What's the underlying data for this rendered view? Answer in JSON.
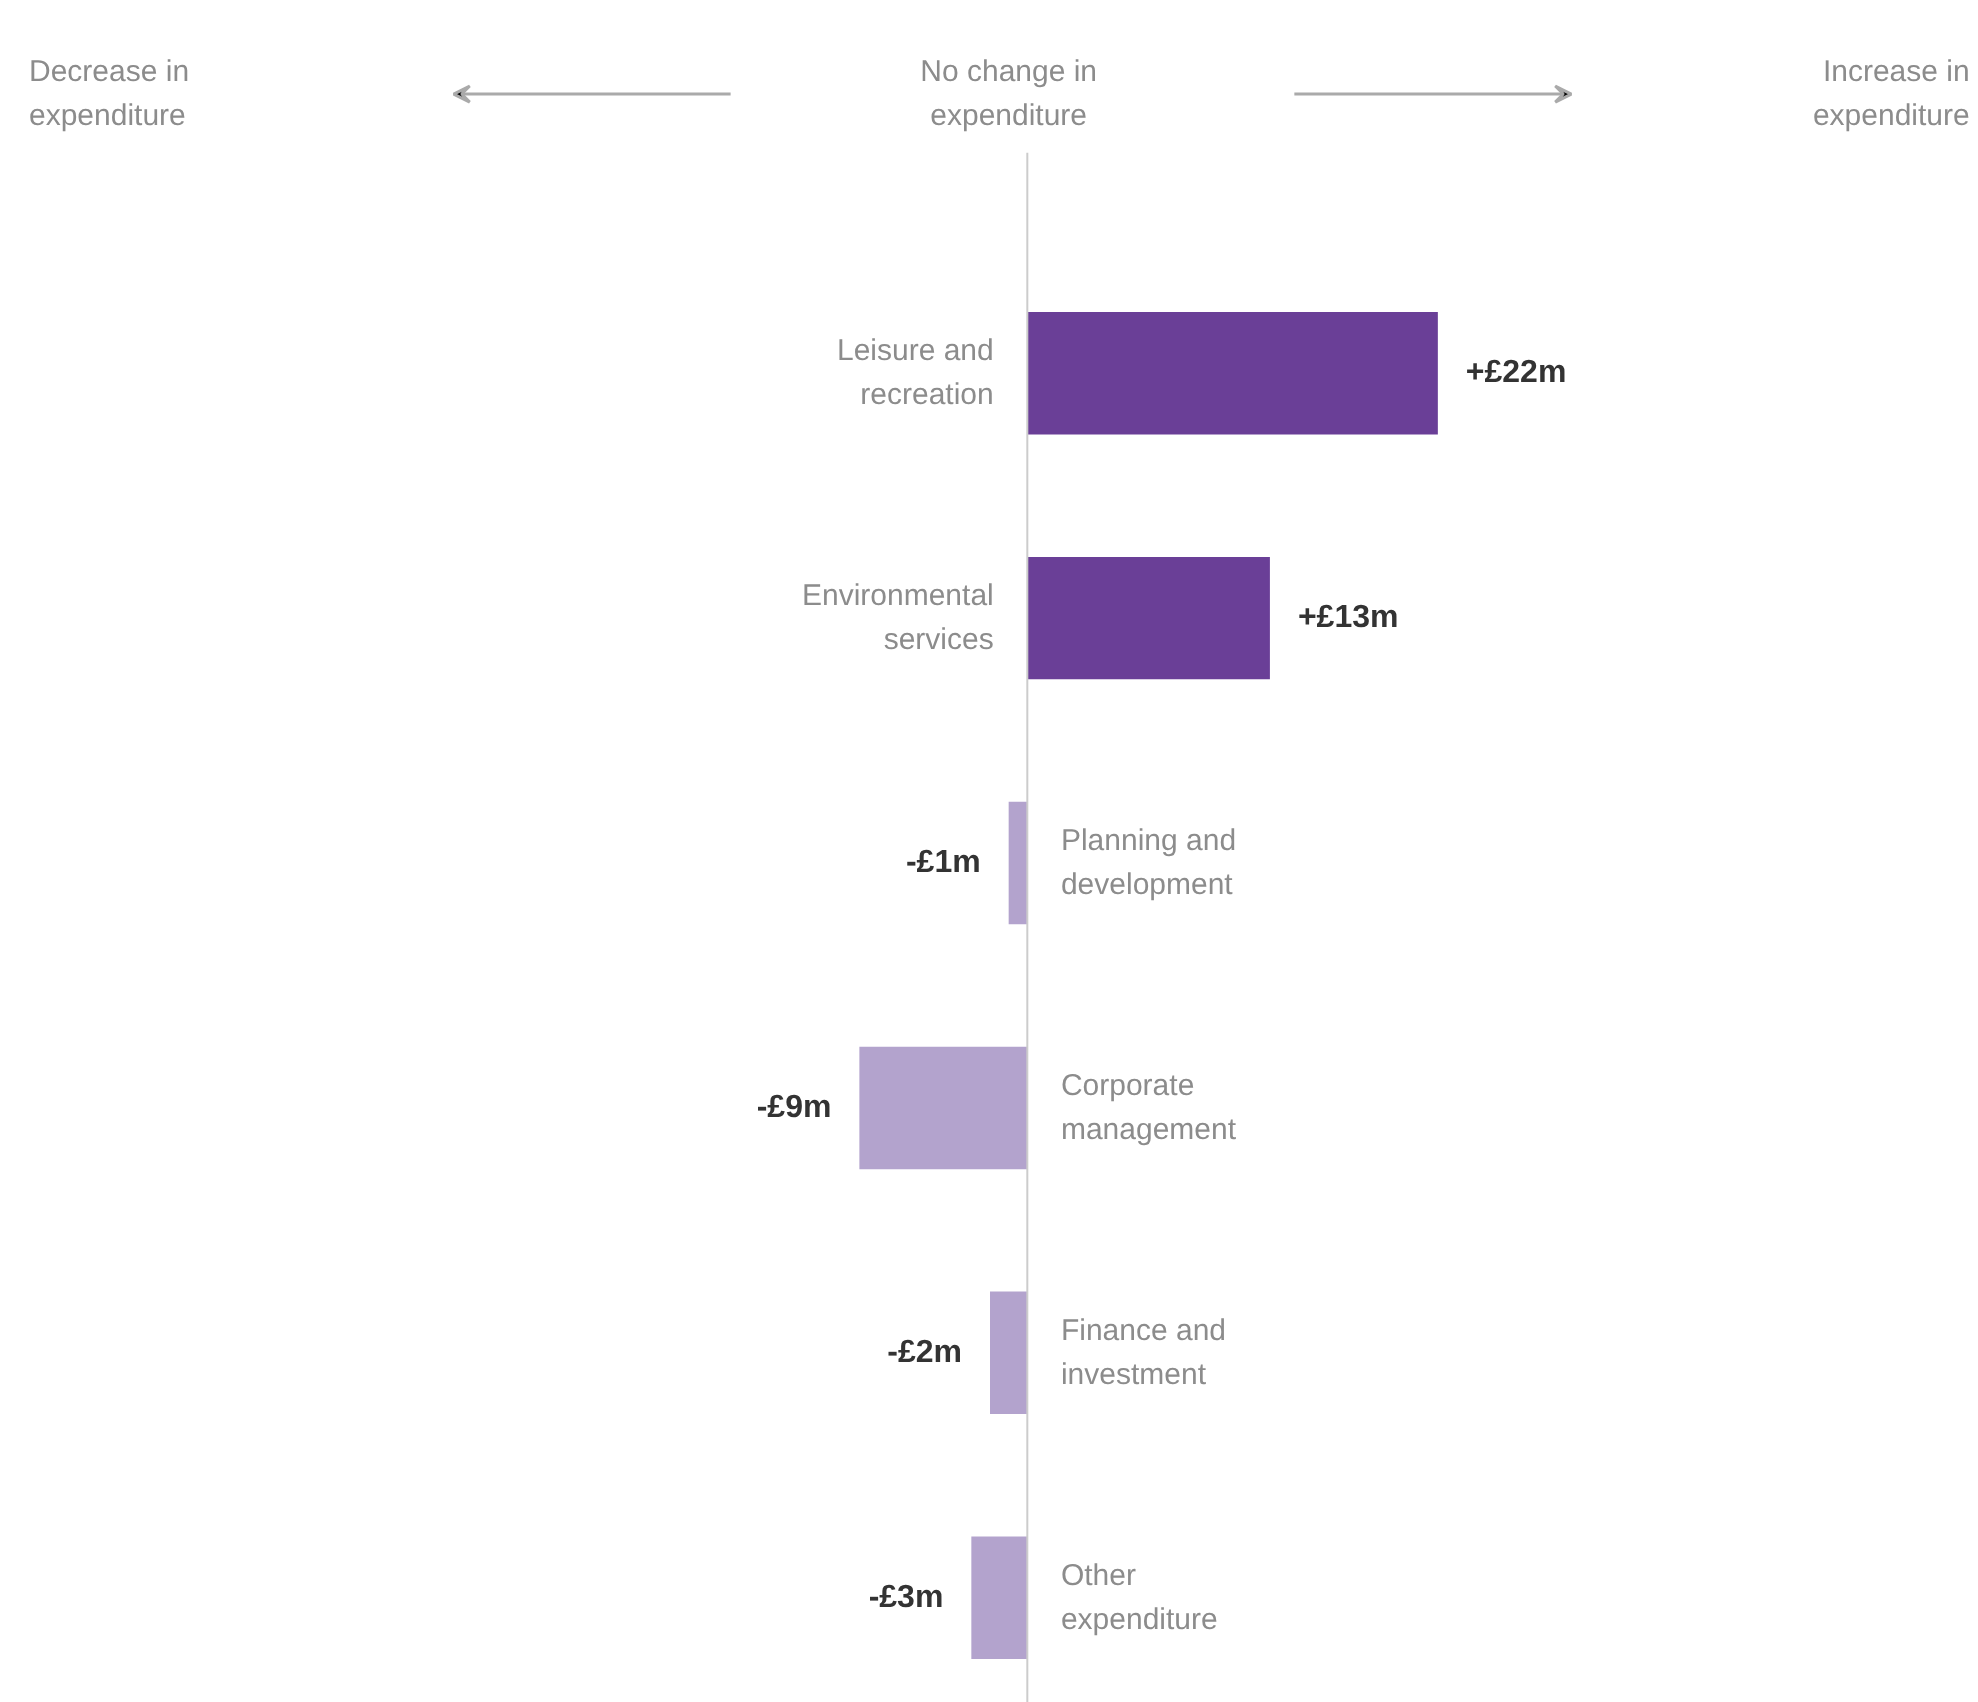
{
  "chart_data": {
    "type": "bar",
    "orientation": "horizontal",
    "categories": [
      "Leisure and recreation",
      "Environmental services",
      "Planning and development",
      "Corporate management",
      "Finance and investment",
      "Other expenditure"
    ],
    "values": [
      22,
      13,
      -1,
      -9,
      -2,
      -3
    ],
    "colors": [
      "#6a3f97",
      "#6a3f97",
      "#b3a3cd",
      "#b3a3cd",
      "#b3a3cd",
      "#b3a3cd"
    ],
    "value_labels": [
      "+£22m",
      "+£13m",
      "-£1m",
      "-£9m",
      "-£2m",
      "-£3m"
    ],
    "annotations": [
      "Decrease in expenditure",
      "No change in expenditure",
      "Increase in expenditure"
    ],
    "xlim": [
      -55,
      51
    ],
    "tick_labels": false
  }
}
